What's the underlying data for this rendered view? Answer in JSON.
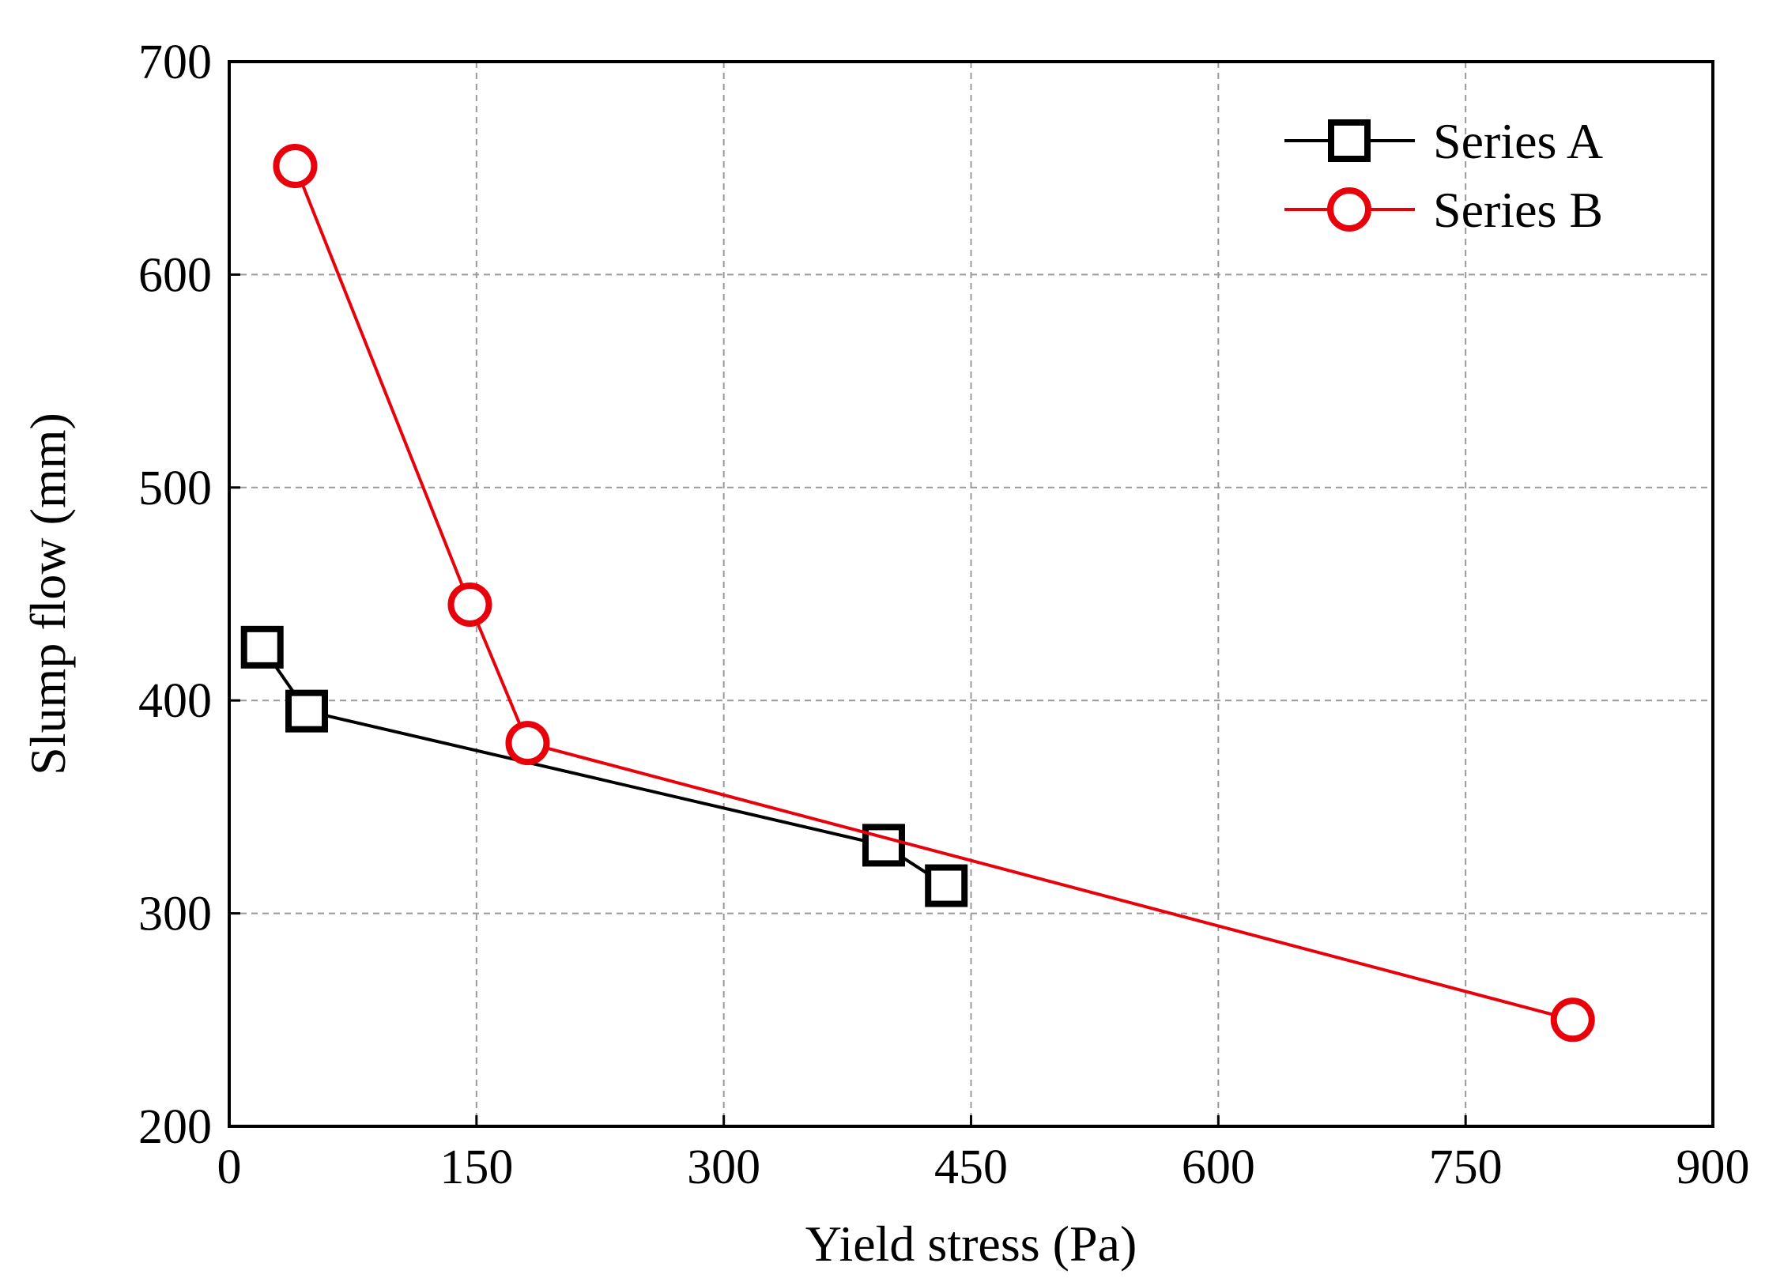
{
  "chart_data": {
    "type": "line",
    "title": "",
    "xlabel": "Yield stress (Pa)",
    "ylabel": "Slump flow (mm)",
    "xlim": [
      0,
      900
    ],
    "ylim": [
      200,
      700
    ],
    "xticks": [
      0,
      150,
      300,
      450,
      600,
      750,
      900
    ],
    "yticks": [
      200,
      300,
      400,
      500,
      600,
      700
    ],
    "xtick_labels": [
      "0",
      "150",
      "300",
      "450",
      "600",
      "750",
      "900"
    ],
    "ytick_labels": [
      "200",
      "300",
      "400",
      "500",
      "600",
      "700"
    ],
    "grid": true,
    "legend_position": "top-right",
    "series": [
      {
        "name": "Series A",
        "color": "#000000",
        "marker": "square",
        "x": [
          20,
          47,
          397,
          435
        ],
        "y": [
          425,
          395,
          332,
          313
        ]
      },
      {
        "name": "Series B",
        "color": "#e8000b",
        "marker": "circle",
        "x": [
          40,
          146,
          181,
          815
        ],
        "y": [
          651,
          445,
          380,
          250
        ]
      }
    ]
  }
}
